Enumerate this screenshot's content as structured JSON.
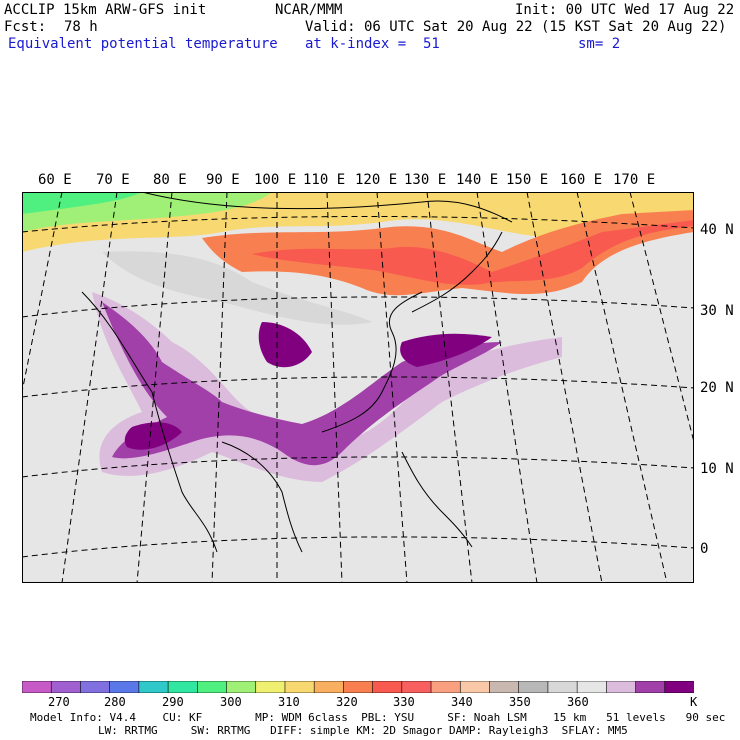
{
  "header": {
    "model": "ACCLIP 15km ARW-GFS init",
    "org": "NCAR/MMM",
    "init": "Init: 00 UTC Wed 17 Aug 22",
    "fcst_label": "Fcst:",
    "fcst_value": "78 h",
    "valid": "Valid: 06 UTC Sat 20 Aug 22 (15 KST Sat 20 Aug 22)",
    "field": "Equivalent potential temperature",
    "level": "at k-index =  51",
    "smooth": "sm= 2"
  },
  "lon_labels": [
    "60 E",
    "70 E",
    "80 E",
    "90 E",
    "100 E",
    "110 E",
    "120 E",
    "130 E",
    "140 E",
    "150 E",
    "160 E",
    "170 E"
  ],
  "lat_labels": [
    "40 N",
    "30 N",
    "20 N",
    "10 N",
    "0"
  ],
  "colorbar": {
    "colors": [
      "#c85ac8",
      "#a060d0",
      "#8070e0",
      "#5a78e8",
      "#30c8c8",
      "#30e6a0",
      "#50f080",
      "#a0f078",
      "#f0f070",
      "#f8d870",
      "#f8b060",
      "#f88050",
      "#f85a50",
      "#f86060",
      "#f8a080",
      "#f8c8a8",
      "#c8b8b0",
      "#b8b8b8",
      "#d8d8d8",
      "#e6e6e6",
      "#dcbcdc",
      "#a040a8",
      "#800080"
    ],
    "ticks": [
      "270",
      "280",
      "290",
      "300",
      "310",
      "320",
      "330",
      "340",
      "350",
      "360"
    ],
    "unit": "K"
  },
  "footer": {
    "line1": "Model Info: V4.4    CU: KF        MP: WDM 6class  PBL: YSU     SF: Noah LSM    15 km   51 levels   90 sec",
    "line2": "LW: RRTMG     SW: RRTMG   DIFF: simple KM: 2D Smagor DAMP: Rayleigh3  SFLAY: MM5"
  }
}
